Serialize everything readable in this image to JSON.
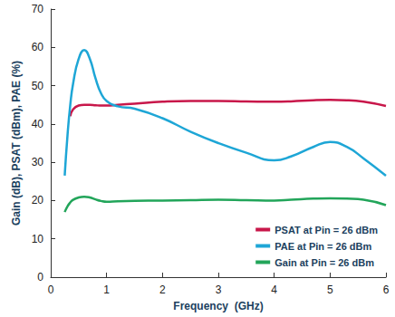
{
  "chart_data": {
    "type": "line",
    "x_label": "Frequency  (GHz)",
    "y_label": "Gain (dB), PSAT (dBm), PAE (%)",
    "x": [
      0.25,
      0.3,
      0.35,
      0.4,
      0.5,
      0.6,
      0.7,
      0.8,
      0.9,
      1.0,
      1.2,
      1.5,
      2.0,
      2.5,
      3.0,
      3.5,
      4.0,
      4.3,
      4.7,
      5.0,
      5.3,
      5.6,
      6.0
    ],
    "series": [
      {
        "name": "PSAT at Pin = 26 dBm",
        "color": "#c8174a",
        "values": [
          null,
          null,
          42,
          43.8,
          44.8,
          45,
          45,
          44.9,
          44.8,
          44.8,
          45,
          45.3,
          45.8,
          46,
          46,
          45.9,
          45.8,
          45.9,
          46.2,
          46.3,
          46.2,
          45.8,
          44.7
        ]
      },
      {
        "name": "PAE at Pin = 26 dBm",
        "color": "#1ea6d6",
        "values": [
          26.5,
          37,
          45,
          50.5,
          57,
          59.3,
          57,
          52,
          48,
          46,
          44.6,
          44,
          41.5,
          38,
          35,
          32.5,
          30.5,
          31.5,
          34,
          35.3,
          34,
          31,
          26.5
        ]
      },
      {
        "name": "Gain at Pin = 26 dBm",
        "color": "#22a55a",
        "values": [
          17,
          18.5,
          19.5,
          20.2,
          20.8,
          21,
          20.8,
          20.3,
          19.9,
          19.7,
          19.8,
          19.9,
          20,
          20.1,
          20.2,
          20.1,
          20,
          20.2,
          20.5,
          20.6,
          20.5,
          20.2,
          18.8
        ]
      }
    ],
    "xlim": [
      0,
      6
    ],
    "xticks": [
      0,
      1,
      2,
      3,
      4,
      5,
      6
    ],
    "ylim": [
      0,
      70
    ],
    "yticks": [
      0,
      10,
      20,
      30,
      40,
      50,
      60,
      70
    ],
    "grid": false,
    "legend": "lower right",
    "marker": "none",
    "line_style": "solid"
  }
}
